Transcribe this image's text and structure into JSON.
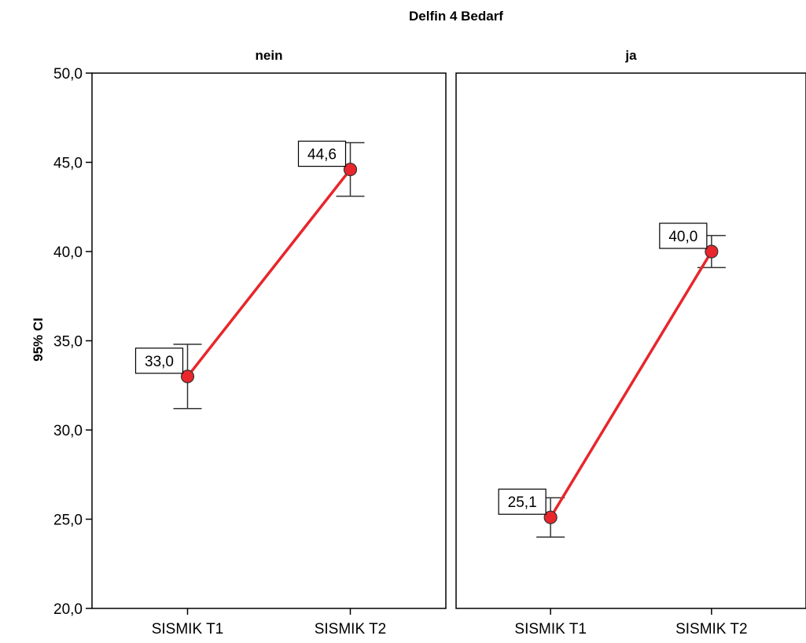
{
  "chart_data": {
    "type": "line",
    "title": "Delfin 4 Bedarf",
    "ylabel": "95% CI",
    "xlabel": "",
    "ylim": [
      20,
      50
    ],
    "yticks": [
      "20,0",
      "25,0",
      "30,0",
      "35,0",
      "40,0",
      "45,0",
      "50,0"
    ],
    "categories": [
      "SISMIK T1",
      "SISMIK T2"
    ],
    "grid": false,
    "line_color": "#e8262b",
    "marker_color": "#e8262b",
    "panels": [
      {
        "label": "nein",
        "means": [
          33.0,
          44.6
        ],
        "ci_lower": [
          31.2,
          43.1
        ],
        "ci_upper": [
          34.8,
          46.1
        ],
        "data_labels": [
          "33,0",
          "44,6"
        ]
      },
      {
        "label": "ja",
        "means": [
          25.1,
          40.0
        ],
        "ci_lower": [
          24.0,
          39.1
        ],
        "ci_upper": [
          26.2,
          40.9
        ],
        "data_labels": [
          "25,1",
          "40,0"
        ]
      }
    ]
  }
}
